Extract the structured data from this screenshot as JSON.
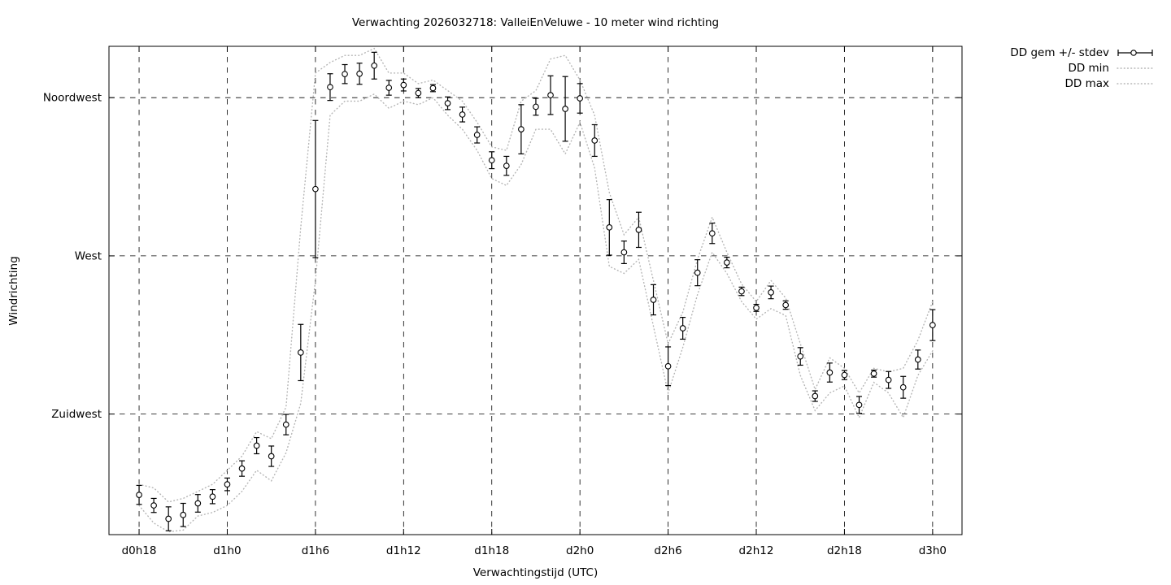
{
  "chart_data": {
    "type": "line",
    "title": "Verwachting 2026032718: ValleiEnVeluwe - 10 meter wind richting",
    "xlabel": "Verwachtingstijd (UTC)",
    "ylabel": "Windrichting",
    "grid": true,
    "legend_position": "outside-top-right",
    "x_tick_labels": [
      "d0h18",
      "d1h0",
      "d1h6",
      "d1h12",
      "d1h18",
      "d2h0",
      "d2h6",
      "d2h12",
      "d2h18",
      "d3h0"
    ],
    "x_tick_hours": [
      0,
      6,
      12,
      18,
      24,
      30,
      36,
      42,
      48,
      54
    ],
    "y_tick_labels": [
      "Zuidwest",
      "West",
      "Noordwest"
    ],
    "y_tick_values": [
      225,
      270,
      315
    ],
    "y_unit": "wind direction, degrees",
    "x_unit": "hours after d0h18",
    "xlim_hours": [
      -2.05,
      56.0
    ],
    "ylim_deg": [
      190.7,
      329.6
    ],
    "colors": {
      "foreground": "#000000",
      "minmax_dotted": "#b5b5b5",
      "marker_fill": "#ffffff"
    },
    "hours": [
      0,
      1,
      2,
      3,
      4,
      5,
      6,
      7,
      8,
      9,
      10,
      11,
      12,
      13,
      14,
      15,
      16,
      17,
      18,
      19,
      20,
      21,
      22,
      23,
      24,
      25,
      26,
      27,
      28,
      29,
      30,
      31,
      32,
      33,
      34,
      35,
      36,
      37,
      38,
      39,
      40,
      41,
      42,
      43,
      44,
      45,
      46,
      47,
      48,
      49,
      50,
      51,
      52,
      53,
      54
    ],
    "series": [
      {
        "name": "DD gem +/- stdev",
        "style": "errorbars-with-circle-marker",
        "mean": [
          202,
          199,
          195.2,
          196.3,
          199.6,
          201.5,
          205,
          209.5,
          216,
          213,
          222,
          242.5,
          289,
          318,
          321.7,
          321.8,
          324.1,
          317.8,
          318.6,
          316.3,
          317.7,
          313.4,
          310.2,
          304.4,
          297.2,
          295.6,
          306,
          312.4,
          315.7,
          311.8,
          314.8,
          302.8,
          278.1,
          271,
          277.4,
          257.5,
          238.6,
          249.4,
          265.2,
          276.4,
          268.1,
          259.9,
          255.2,
          259.6,
          256,
          241.4,
          230.1,
          236.8,
          236.1,
          227.6,
          236.5,
          234.7,
          232.6,
          240.5,
          250.3
        ],
        "stdev": [
          2.7,
          2,
          3.4,
          3.3,
          2.5,
          2,
          1.8,
          2.2,
          2.3,
          2.9,
          2.9,
          8,
          19.5,
          3.8,
          2.7,
          3,
          3.8,
          2.1,
          1.7,
          1.3,
          1,
          1.8,
          2.1,
          2.3,
          2.4,
          2.7,
          7,
          2.4,
          5.5,
          9.2,
          4.2,
          4.5,
          7.9,
          3.2,
          5,
          4.3,
          5.5,
          3.1,
          3.7,
          2.9,
          1.5,
          1.2,
          1,
          1.8,
          1.2,
          2.5,
          1.5,
          2.7,
          1.3,
          2.4,
          1,
          2.4,
          3.1,
          2.7,
          4.4
        ]
      },
      {
        "name": "DD min",
        "style": "dotted-line",
        "values": [
          199,
          194,
          191.5,
          192,
          196,
          197,
          199,
          203,
          209,
          206,
          214,
          228,
          263,
          310,
          314,
          314,
          316,
          312,
          314,
          313,
          315,
          310,
          306,
          300,
          292,
          290,
          296,
          306,
          306,
          299,
          308,
          295,
          267,
          265,
          269,
          250,
          231,
          244,
          259,
          271,
          265,
          257,
          252,
          255,
          253,
          236,
          226,
          231,
          233,
          224,
          234,
          231,
          224,
          236,
          243
        ]
      },
      {
        "name": "DD max",
        "style": "dotted-line",
        "values": [
          205,
          204,
          200,
          201,
          203,
          205,
          209,
          213,
          220,
          218,
          227,
          278,
          322,
          325,
          327,
          327,
          329,
          322,
          322,
          319,
          320,
          317,
          314,
          308,
          301,
          300,
          314,
          317,
          326,
          327,
          320,
          310,
          288,
          276,
          281,
          263,
          245,
          254,
          269,
          281,
          271,
          262,
          257,
          263,
          258,
          245,
          232,
          241,
          238,
          231,
          238,
          237,
          238,
          246,
          257
        ]
      }
    ]
  }
}
